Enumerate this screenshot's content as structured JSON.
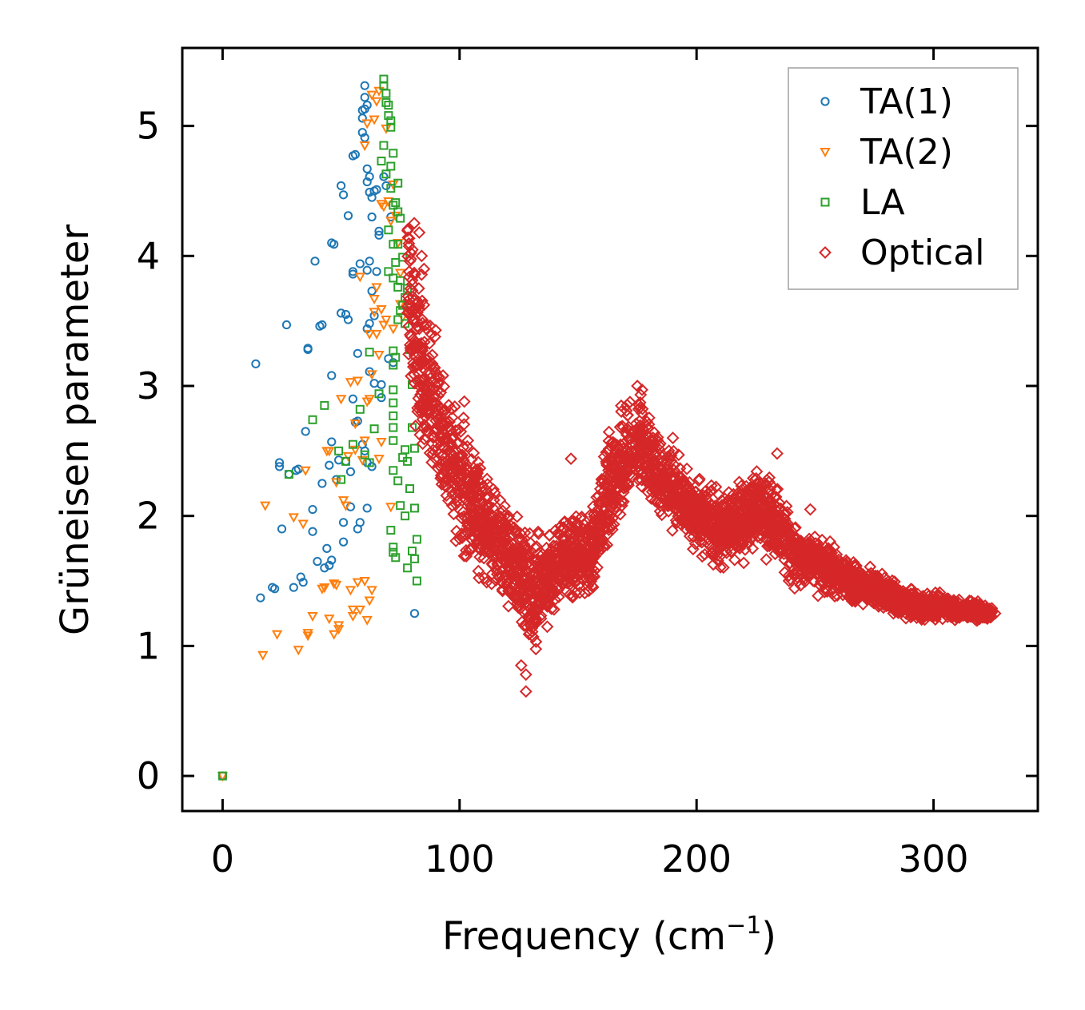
{
  "chart_data": {
    "type": "scatter",
    "xlabel": "Frequency (cm",
    "xlabel_superscript": "−1",
    "xlabel_suffix": ")",
    "ylabel": "Grüneisen parameter",
    "xlim": [
      -17,
      344
    ],
    "ylim": [
      -0.27,
      5.6
    ],
    "xticks": [
      0,
      100,
      200,
      300
    ],
    "xtick_labels": [
      "0",
      "100",
      "200",
      "300"
    ],
    "yticks": [
      0,
      1,
      2,
      3,
      4,
      5
    ],
    "ytick_labels": [
      "0",
      "1",
      "2",
      "3",
      "4",
      "5"
    ],
    "grid": false,
    "legend_position": "top-right",
    "series": [
      {
        "name": "TA(1)",
        "marker": "circle",
        "color": "#1f77b4",
        "points": [
          [
            0,
            0
          ],
          [
            14,
            3.17
          ],
          [
            16,
            1.37
          ],
          [
            21,
            1.45
          ],
          [
            22,
            1.44
          ],
          [
            24,
            2.41
          ],
          [
            24,
            2.38
          ],
          [
            25,
            1.9
          ],
          [
            27,
            3.47
          ],
          [
            28,
            2.32
          ],
          [
            30,
            1.45
          ],
          [
            31,
            2.35
          ],
          [
            32,
            2.36
          ],
          [
            33,
            1.53
          ],
          [
            34,
            1.49
          ],
          [
            35,
            2.65
          ],
          [
            36,
            3.28
          ],
          [
            36,
            3.29
          ],
          [
            38,
            1.88
          ],
          [
            38,
            2.05
          ],
          [
            39,
            3.96
          ],
          [
            40,
            1.65
          ],
          [
            41,
            3.46
          ],
          [
            42,
            2.25
          ],
          [
            42,
            3.47
          ],
          [
            43,
            1.6
          ],
          [
            44,
            1.75
          ],
          [
            45,
            1.62
          ],
          [
            45,
            2.39
          ],
          [
            46,
            3.08
          ],
          [
            46,
            2.57
          ],
          [
            46,
            4.1
          ],
          [
            46,
            1.66
          ],
          [
            47,
            4.09
          ],
          [
            48,
            2.28
          ],
          [
            49,
            2.43
          ],
          [
            50,
            3.56
          ],
          [
            50,
            4.54
          ],
          [
            51,
            4.47
          ],
          [
            51,
            1.95
          ],
          [
            51,
            1.8
          ],
          [
            52,
            3.55
          ],
          [
            52,
            2.42
          ],
          [
            53,
            4.31
          ],
          [
            53,
            3.51
          ],
          [
            54,
            2.34
          ],
          [
            54,
            2.07
          ],
          [
            55,
            3.88
          ],
          [
            55,
            3.86
          ],
          [
            55,
            2.9
          ],
          [
            55,
            4.77
          ],
          [
            56,
            4.78
          ],
          [
            56,
            2.72
          ],
          [
            57,
            1.9
          ],
          [
            57,
            3.25
          ],
          [
            57,
            2.73
          ],
          [
            58,
            3.94
          ],
          [
            58,
            1.95
          ],
          [
            59,
            5.06
          ],
          [
            59,
            5.12
          ],
          [
            59,
            2.55
          ],
          [
            59,
            4.95
          ],
          [
            60,
            5.31
          ],
          [
            60,
            5.22
          ],
          [
            60,
            5.13
          ],
          [
            60,
            4.91
          ],
          [
            60,
            2.5
          ],
          [
            61,
            5.16
          ],
          [
            61,
            3.89
          ],
          [
            61,
            4.57
          ],
          [
            61,
            4.67
          ],
          [
            61,
            2.41
          ],
          [
            61,
            2.06
          ],
          [
            61,
            3.44
          ],
          [
            62,
            3.48
          ],
          [
            62,
            3.11
          ],
          [
            62,
            4.61
          ],
          [
            62,
            4.49
          ],
          [
            62,
            3.96
          ],
          [
            63,
            4.3
          ],
          [
            63,
            4.45
          ],
          [
            63,
            3.73
          ],
          [
            63,
            2.38
          ],
          [
            64,
            3.54
          ],
          [
            64,
            4.5
          ],
          [
            64,
            3.02
          ],
          [
            65,
            4.51
          ],
          [
            65,
            3.88
          ],
          [
            66,
            4.19
          ],
          [
            66,
            4.16
          ],
          [
            67,
            3.01
          ],
          [
            67,
            2.91
          ],
          [
            68,
            4.61
          ],
          [
            69,
            4.54
          ],
          [
            70,
            3.21
          ],
          [
            71,
            4.3
          ],
          [
            72,
            3.18
          ],
          [
            81,
            1.25
          ]
        ]
      },
      {
        "name": "TA(2)",
        "marker": "triangle-down",
        "color": "#ff7f0e",
        "points": [
          [
            0,
            0
          ],
          [
            17,
            0.93
          ],
          [
            18,
            2.08
          ],
          [
            23,
            1.09
          ],
          [
            30,
            1.99
          ],
          [
            32,
            0.97
          ],
          [
            34,
            1.94
          ],
          [
            35,
            2.35
          ],
          [
            36,
            1.08
          ],
          [
            36,
            1.1
          ],
          [
            38,
            1.23
          ],
          [
            42,
            1.44
          ],
          [
            43,
            1.45
          ],
          [
            44,
            2.5
          ],
          [
            45,
            1.21
          ],
          [
            45,
            2.5
          ],
          [
            47,
            1.09
          ],
          [
            47,
            1.48
          ],
          [
            48,
            1.47
          ],
          [
            48,
            2.26
          ],
          [
            49,
            1.13
          ],
          [
            49,
            1.16
          ],
          [
            50,
            2.9
          ],
          [
            51,
            2.12
          ],
          [
            52,
            2.08
          ],
          [
            53,
            2.46
          ],
          [
            54,
            3.03
          ],
          [
            54,
            1.43
          ],
          [
            55,
            1.23
          ],
          [
            55,
            1.28
          ],
          [
            56,
            2.71
          ],
          [
            56,
            2.51
          ],
          [
            57,
            3.04
          ],
          [
            57,
            1.49
          ],
          [
            58,
            3.84
          ],
          [
            58,
            1.28
          ],
          [
            59,
            2.43
          ],
          [
            60,
            4.85
          ],
          [
            60,
            1.5
          ],
          [
            60,
            2.58
          ],
          [
            61,
            5.02
          ],
          [
            61,
            2.88
          ],
          [
            61,
            1.2
          ],
          [
            62,
            3.4
          ],
          [
            62,
            2.9
          ],
          [
            62,
            1.35
          ],
          [
            63,
            5.24
          ],
          [
            63,
            3.09
          ],
          [
            63,
            1.43
          ],
          [
            64,
            5.05
          ],
          [
            64,
            3.67
          ],
          [
            64,
            3.57
          ],
          [
            65,
            5.19
          ],
          [
            65,
            3.76
          ],
          [
            65,
            3.4
          ],
          [
            66,
            5.27
          ],
          [
            66,
            3.24
          ],
          [
            66,
            2.44
          ],
          [
            67,
            4.4
          ],
          [
            67,
            3.59
          ],
          [
            67,
            2.57
          ],
          [
            68,
            4.38
          ],
          [
            68,
            3.47
          ],
          [
            69,
            4.98
          ],
          [
            69,
            3.51
          ],
          [
            70,
            4.42
          ],
          [
            71,
            4.27
          ],
          [
            71,
            2.07
          ],
          [
            72,
            4.55
          ],
          [
            72,
            3.44
          ],
          [
            73,
            4.31
          ],
          [
            74,
            4.1
          ],
          [
            75,
            3.63
          ],
          [
            75,
            3.87
          ],
          [
            76,
            3.53
          ]
        ]
      },
      {
        "name": "LA",
        "marker": "square",
        "color": "#2ca02c",
        "points": [
          [
            0,
            0
          ],
          [
            28,
            2.32
          ],
          [
            38,
            2.74
          ],
          [
            43,
            2.85
          ],
          [
            49,
            2.5
          ],
          [
            50,
            2.28
          ],
          [
            52,
            2.42
          ],
          [
            55,
            2.55
          ],
          [
            58,
            2.82
          ],
          [
            60,
            2.47
          ],
          [
            62,
            2.41
          ],
          [
            62,
            3.26
          ],
          [
            64,
            2.67
          ],
          [
            66,
            2.94
          ],
          [
            67,
            4.73
          ],
          [
            68,
            4.85
          ],
          [
            68,
            5.36
          ],
          [
            68,
            5.31
          ],
          [
            69,
            5.25
          ],
          [
            69,
            5.18
          ],
          [
            69,
            4.63
          ],
          [
            70,
            5.16
          ],
          [
            70,
            5.08
          ],
          [
            70,
            4.2
          ],
          [
            70,
            3.88
          ],
          [
            71,
            4.69
          ],
          [
            71,
            5.04
          ],
          [
            71,
            4.99
          ],
          [
            71,
            4.52
          ],
          [
            71,
            1.89
          ],
          [
            72,
            4.79
          ],
          [
            72,
            4.39
          ],
          [
            72,
            4.09
          ],
          [
            72,
            3.83
          ],
          [
            72,
            3.27
          ],
          [
            72,
            3.16
          ],
          [
            72,
            2.97
          ],
          [
            72,
            2.87
          ],
          [
            72,
            2.77
          ],
          [
            72,
            2.68
          ],
          [
            72,
            2.58
          ],
          [
            72,
            2.35
          ],
          [
            72,
            1.76
          ],
          [
            72,
            1.72
          ],
          [
            73,
            4.41
          ],
          [
            73,
            3.95
          ],
          [
            73,
            3.22
          ],
          [
            73,
            1.68
          ],
          [
            74,
            4.56
          ],
          [
            74,
            4.34
          ],
          [
            74,
            4.09
          ],
          [
            74,
            3.76
          ],
          [
            74,
            3.51
          ],
          [
            74,
            2.27
          ],
          [
            75,
            4.29
          ],
          [
            75,
            3.81
          ],
          [
            75,
            3.58
          ],
          [
            75,
            2.08
          ],
          [
            76,
            3.99
          ],
          [
            76,
            3.62
          ],
          [
            76,
            2.45
          ],
          [
            77,
            3.68
          ],
          [
            77,
            3.48
          ],
          [
            77,
            2.51
          ],
          [
            77,
            2.0
          ],
          [
            78,
            3.75
          ],
          [
            78,
            2.42
          ],
          [
            78,
            1.6
          ],
          [
            79,
            3.28
          ],
          [
            79,
            2.21
          ],
          [
            80,
            3.01
          ],
          [
            80,
            2.68
          ],
          [
            80,
            1.73
          ],
          [
            81,
            2.52
          ],
          [
            81,
            2.06
          ],
          [
            81,
            1.67
          ],
          [
            82,
            1.82
          ],
          [
            82,
            1.5
          ]
        ]
      },
      {
        "name": "Optical",
        "marker": "diamond",
        "color": "#d62728",
        "points": "generated",
        "trend_x": [
          78,
          84,
          90,
          95,
          100,
          105,
          110,
          115,
          120,
          125,
          130,
          135,
          140,
          145,
          150,
          155,
          160,
          165,
          170,
          175,
          180,
          185,
          190,
          195,
          200,
          205,
          210,
          215,
          220,
          225,
          230,
          235,
          240,
          245,
          250,
          255,
          260,
          265,
          270,
          275,
          280,
          285,
          290,
          295,
          300,
          305,
          310,
          315,
          320,
          325
        ],
        "trend_y": [
          3.8,
          3.15,
          2.75,
          2.45,
          2.25,
          2.1,
          1.95,
          1.8,
          1.68,
          1.58,
          1.4,
          1.5,
          1.55,
          1.65,
          1.72,
          1.7,
          2.0,
          2.25,
          2.45,
          2.6,
          2.45,
          2.3,
          2.2,
          2.1,
          2.0,
          1.95,
          1.9,
          1.92,
          2.0,
          2.05,
          2.0,
          1.9,
          1.75,
          1.68,
          1.65,
          1.6,
          1.55,
          1.5,
          1.48,
          1.45,
          1.4,
          1.35,
          1.33,
          1.3,
          1.3,
          1.3,
          1.28,
          1.27,
          1.26,
          1.25
        ],
        "trend_spread": [
          0.45,
          0.45,
          0.4,
          0.35,
          0.35,
          0.33,
          0.3,
          0.28,
          0.25,
          0.3,
          0.35,
          0.25,
          0.22,
          0.22,
          0.22,
          0.22,
          0.28,
          0.3,
          0.3,
          0.28,
          0.22,
          0.2,
          0.2,
          0.18,
          0.18,
          0.18,
          0.18,
          0.18,
          0.2,
          0.2,
          0.2,
          0.2,
          0.18,
          0.15,
          0.14,
          0.13,
          0.12,
          0.12,
          0.1,
          0.1,
          0.09,
          0.08,
          0.07,
          0.07,
          0.07,
          0.06,
          0.06,
          0.05,
          0.05,
          0.03
        ],
        "count": 3500,
        "outliers": [
          [
            128,
            0.65
          ],
          [
            128,
            0.78
          ],
          [
            126,
            0.85
          ],
          [
            175,
            3.0
          ],
          [
            177,
            2.97
          ],
          [
            147,
            2.44
          ],
          [
            234,
            2.48
          ],
          [
            102,
            2.88
          ],
          [
            93,
            3.08
          ],
          [
            83,
            4.18
          ],
          [
            84,
            4.0
          ],
          [
            85,
            3.9
          ],
          [
            326,
            1.25
          ],
          [
            248,
            2.05
          ],
          [
            190,
            2.6
          ]
        ]
      }
    ]
  }
}
